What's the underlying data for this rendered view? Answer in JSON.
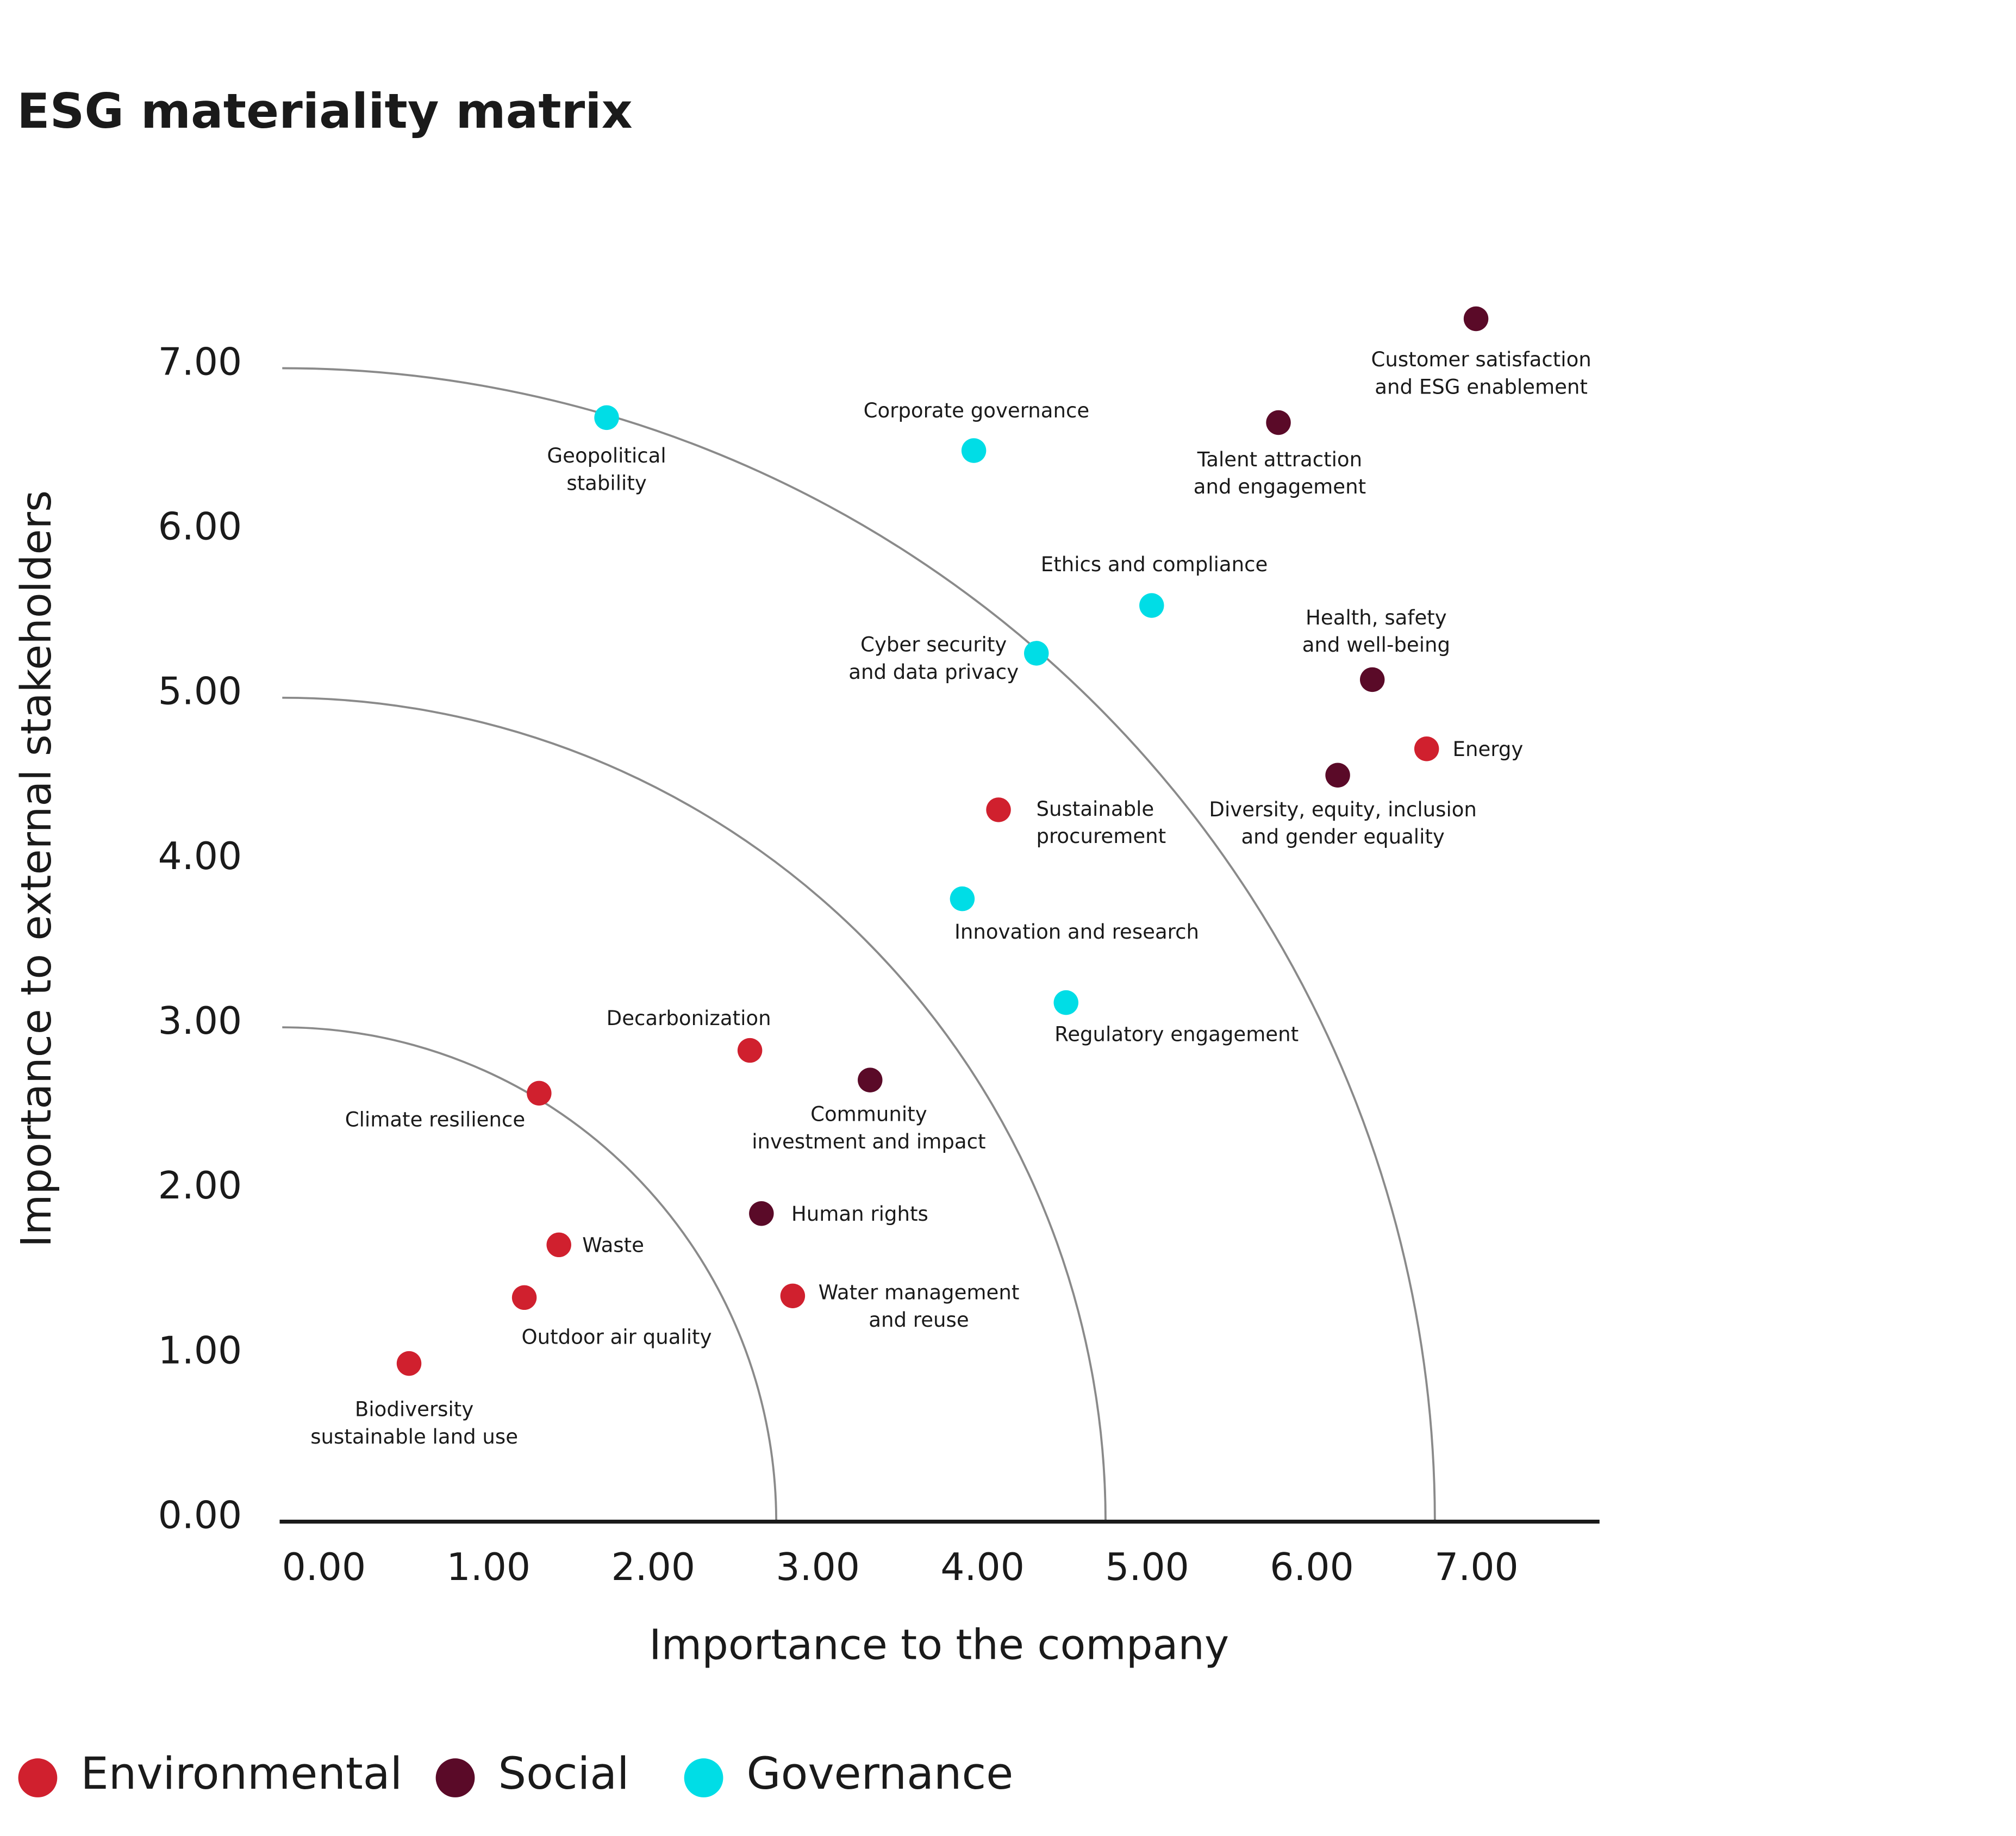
{
  "chart_data": {
    "type": "scatter",
    "title": "ESG materiality matrix",
    "x_label": "Importance to the company",
    "y_label": "Importance to external stakeholders",
    "xlim": [
      0,
      8
    ],
    "ylim": [
      0,
      7.5
    ],
    "xticks": [
      {
        "value": 0,
        "label": "0.00"
      },
      {
        "value": 1,
        "label": "1.00"
      },
      {
        "value": 2,
        "label": "2.00"
      },
      {
        "value": 3,
        "label": "3.00"
      },
      {
        "value": 4,
        "label": "4.00"
      },
      {
        "value": 5,
        "label": "5.00"
      },
      {
        "value": 6,
        "label": "6.00"
      },
      {
        "value": 7,
        "label": "7.00"
      }
    ],
    "yticks": [
      {
        "value": 0,
        "label": "0.00"
      },
      {
        "value": 1,
        "label": "1.00"
      },
      {
        "value": 2,
        "label": "2.00"
      },
      {
        "value": 3,
        "label": "3.00"
      },
      {
        "value": 4,
        "label": "4.00"
      },
      {
        "value": 5,
        "label": "5.00"
      },
      {
        "value": 6,
        "label": "6.00"
      },
      {
        "value": 7,
        "label": "7.00"
      }
    ],
    "reference_arcs": [
      3,
      5,
      7
    ],
    "series": [
      {
        "name": "Environmental",
        "color": "#d0202e",
        "x": [
          6.95,
          4.35,
          2.84,
          1.56,
          1.68,
          1.47,
          0.77,
          3.1
        ],
        "values": [
          4.69,
          4.32,
          2.86,
          2.6,
          1.68,
          1.36,
          0.96,
          1.37
        ],
        "labels": [
          [
            "Energy"
          ],
          [
            "Sustainable",
            "procurement"
          ],
          [
            "Decarbonization"
          ],
          [
            "Climate resilience"
          ],
          [
            "Waste"
          ],
          [
            "Outdoor air quality"
          ],
          [
            "Biodiversity",
            "sustainable land use"
          ],
          [
            "Water management",
            "and reuse"
          ]
        ]
      },
      {
        "name": "Social",
        "color": "#5a0a28",
        "x": [
          7.25,
          6.05,
          6.62,
          6.41,
          3.57,
          2.91
        ],
        "values": [
          7.3,
          6.67,
          5.11,
          4.53,
          2.68,
          1.87
        ],
        "labels": [
          [
            "Customer satisfaction",
            "and ESG enablement"
          ],
          [
            "Talent attraction",
            "and engagement"
          ],
          [
            "Health, safety",
            "and well-being"
          ],
          [
            "Diversity, equity, inclusion",
            "and gender equality"
          ],
          [
            "Community",
            "investment and impact"
          ],
          [
            "Human rights"
          ]
        ]
      },
      {
        "name": "Governance",
        "color": "#00dde6",
        "x": [
          1.97,
          4.2,
          5.28,
          4.58,
          4.13,
          4.76
        ],
        "values": [
          6.7,
          6.5,
          5.56,
          5.27,
          3.78,
          3.15
        ],
        "labels": [
          [
            "Geopolitical",
            "stability"
          ],
          [
            "Corporate governance"
          ],
          [
            "Ethics and compliance"
          ],
          [
            "Cyber security",
            "and data privacy"
          ],
          [
            "Innovation and research"
          ],
          [
            "Regulatory engagement"
          ]
        ]
      }
    ]
  }
}
